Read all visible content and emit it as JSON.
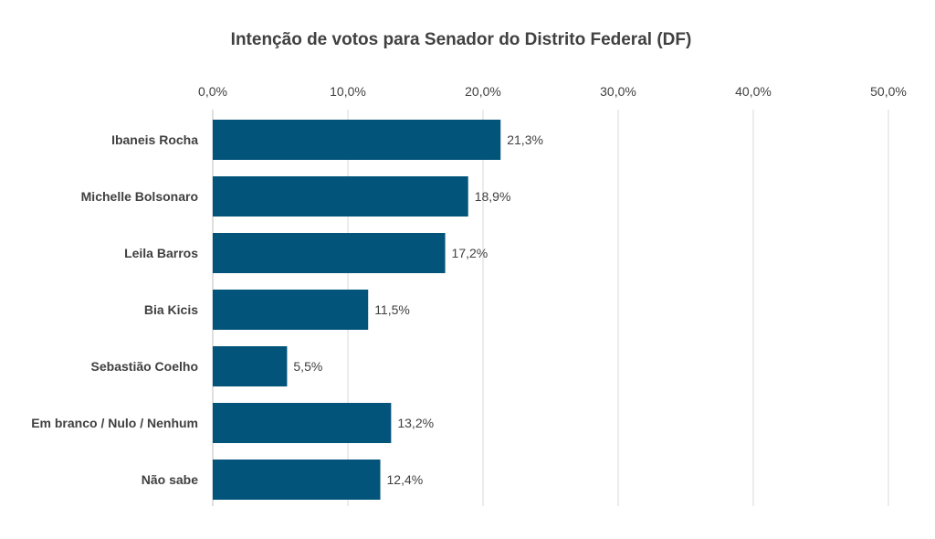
{
  "chart_data": {
    "type": "bar",
    "orientation": "horizontal",
    "title": "Intenção de votos para Senador do Distrito Federal (DF)",
    "categories": [
      "Ibaneis Rocha",
      "Michelle Bolsonaro",
      "Leila Barros",
      "Bia Kicis",
      "Sebastião Coelho",
      "Em branco / Nulo / Nenhum",
      "Não sabe"
    ],
    "values": [
      21.3,
      18.9,
      17.2,
      11.5,
      5.5,
      13.2,
      12.4
    ],
    "value_labels": [
      "21,3%",
      "18,9%",
      "17,2%",
      "11,5%",
      "5,5%",
      "13,2%",
      "12,4%"
    ],
    "xlim": [
      0,
      50
    ],
    "ticks": [
      0,
      10,
      20,
      30,
      40,
      50
    ],
    "tick_labels": [
      "0,0%",
      "10,0%",
      "20,0%",
      "30,0%",
      "40,0%",
      "50,0%"
    ],
    "axis_position": "top",
    "grid": true,
    "legend": "none",
    "xlabel": "",
    "ylabel": ""
  },
  "colors": {
    "bar": "#02547a",
    "text": "#404040",
    "grid": "#d9d9d9"
  }
}
